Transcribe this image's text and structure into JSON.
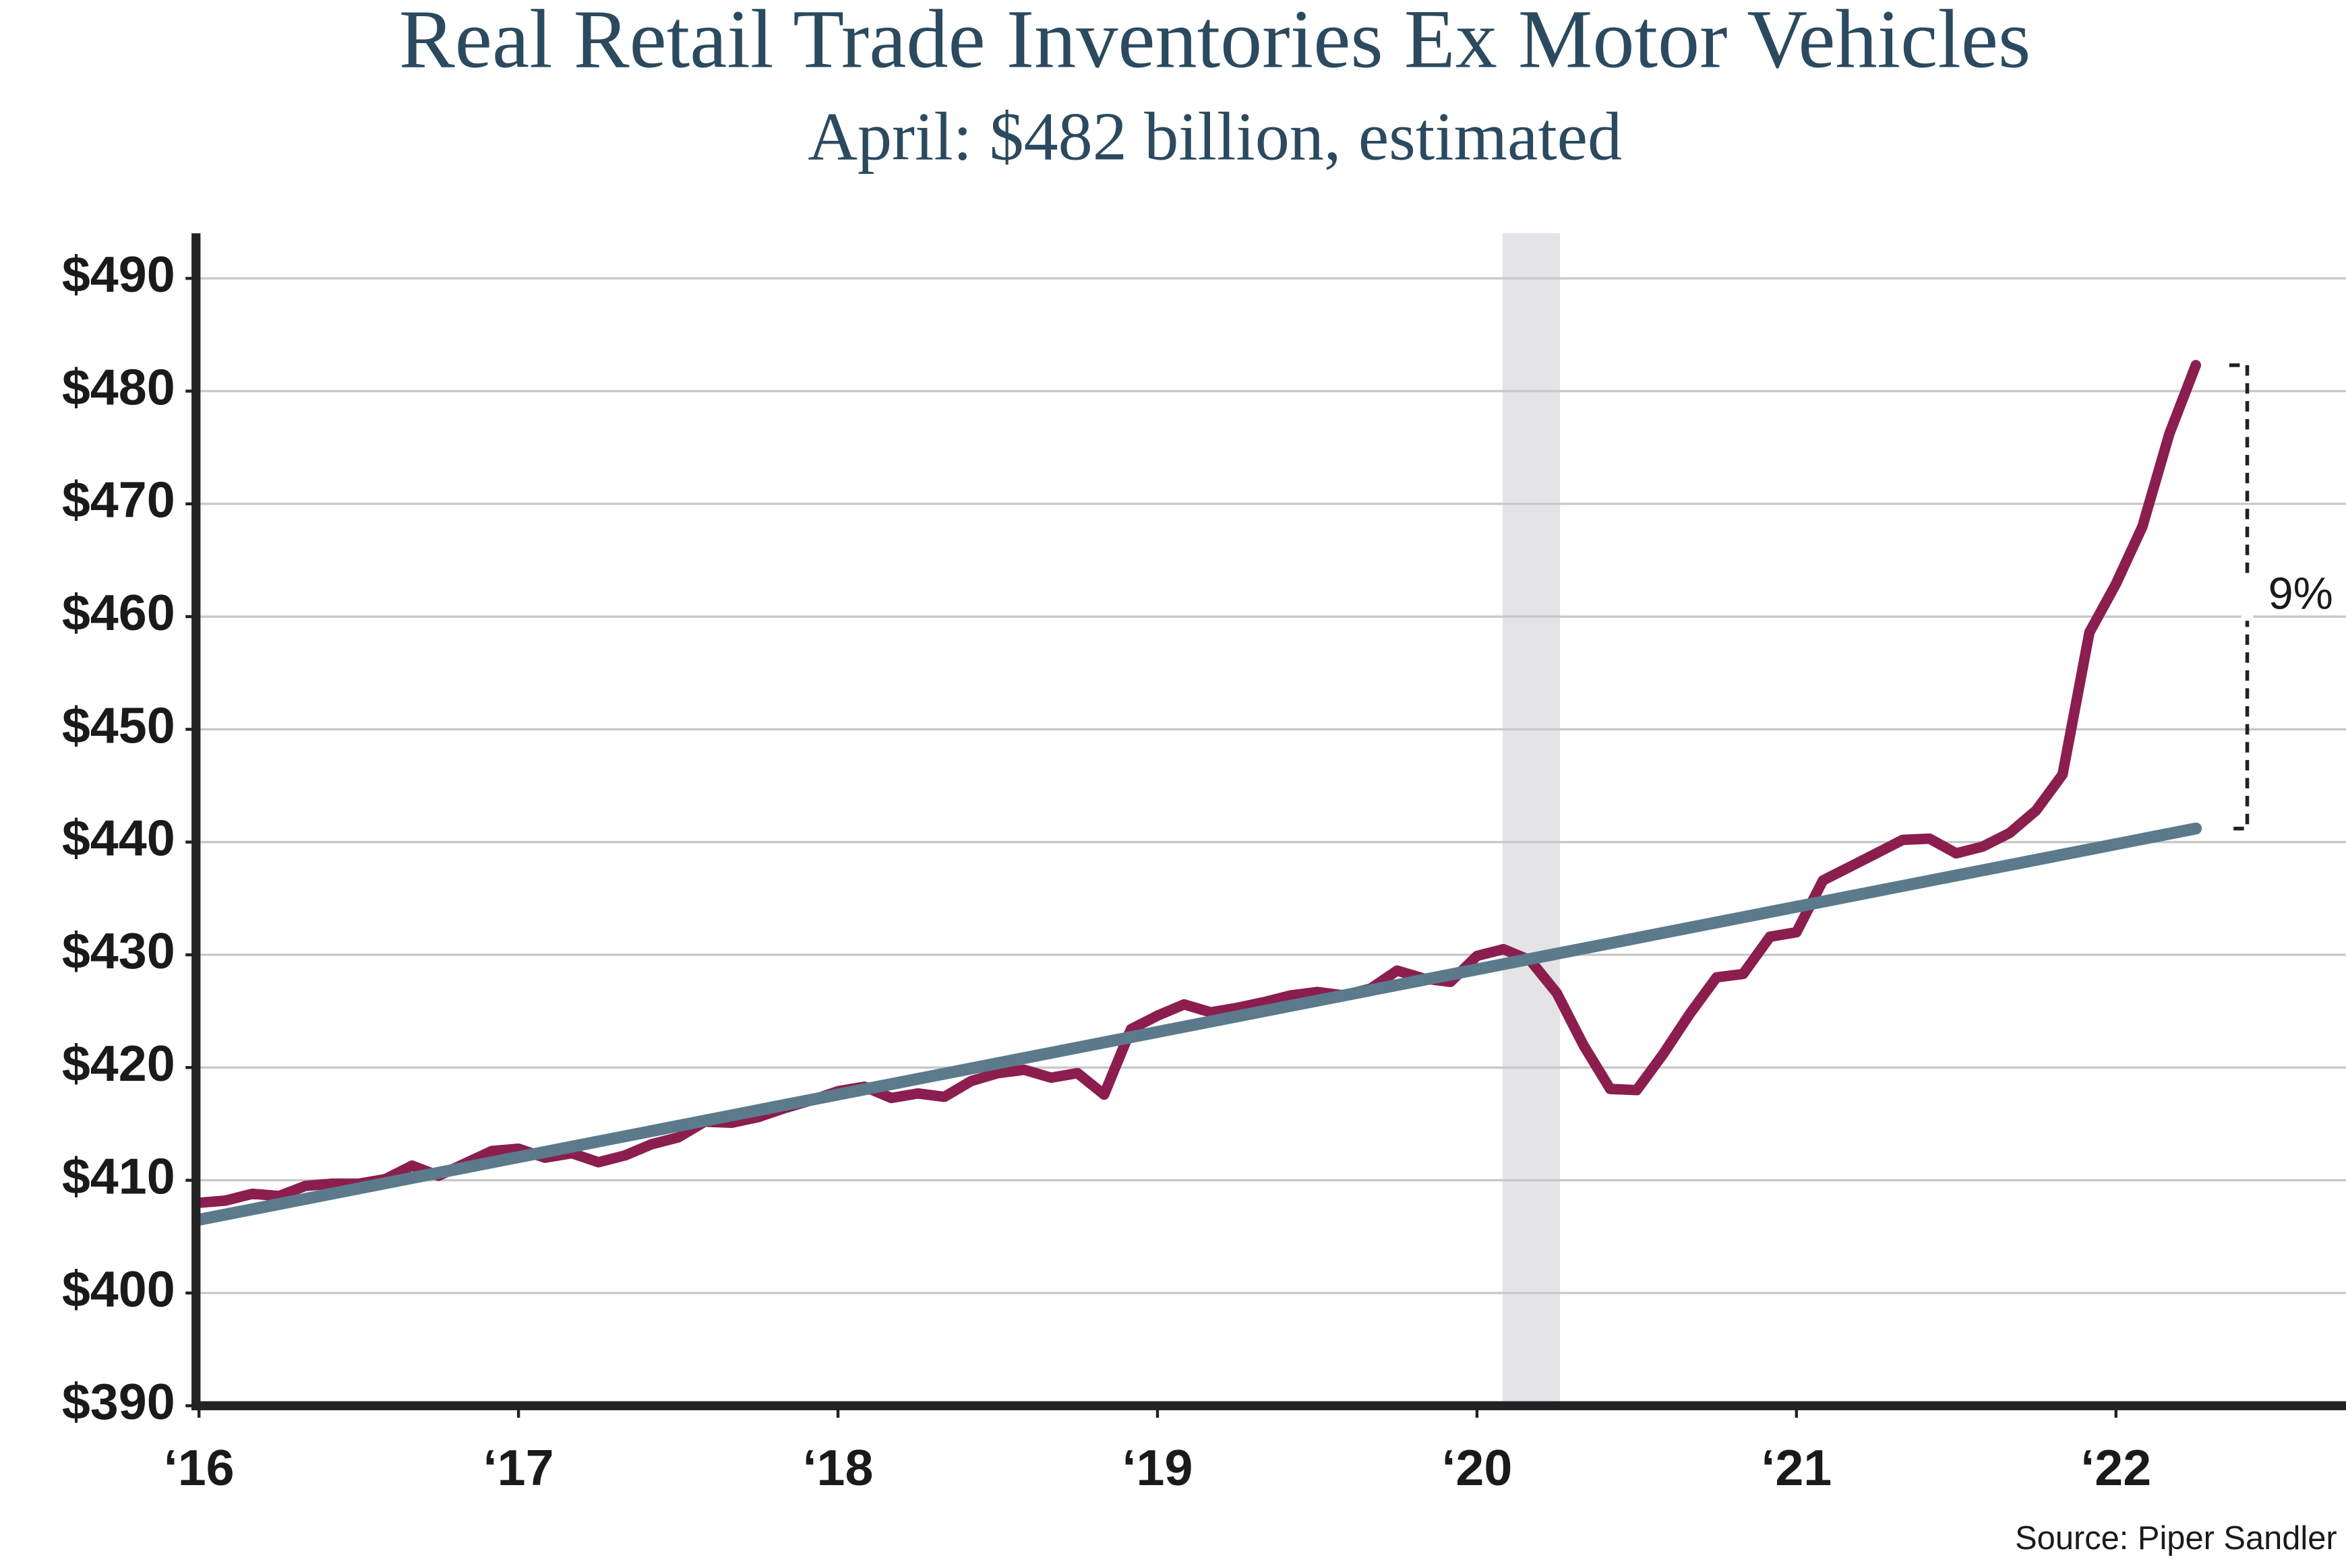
{
  "chart_data": {
    "type": "line",
    "title": "Real Retail Trade Inventories Ex Motor Vehicles",
    "subtitle": "April: $482 billion, estimated",
    "source": "Source: Piper Sandler",
    "x": [
      2016.0,
      2016.083,
      2016.167,
      2016.25,
      2016.333,
      2016.417,
      2016.5,
      2016.583,
      2016.667,
      2016.75,
      2016.833,
      2016.917,
      2017.0,
      2017.083,
      2017.167,
      2017.25,
      2017.333,
      2017.417,
      2017.5,
      2017.583,
      2017.667,
      2017.75,
      2017.833,
      2017.917,
      2018.0,
      2018.083,
      2018.167,
      2018.25,
      2018.333,
      2018.417,
      2018.5,
      2018.583,
      2018.667,
      2018.75,
      2018.833,
      2018.917,
      2019.0,
      2019.083,
      2019.167,
      2019.25,
      2019.333,
      2019.417,
      2019.5,
      2019.583,
      2019.667,
      2019.75,
      2019.833,
      2019.917,
      2020.0,
      2020.083,
      2020.167,
      2020.25,
      2020.333,
      2020.417,
      2020.5,
      2020.583,
      2020.667,
      2020.75,
      2020.833,
      2020.917,
      2021.0,
      2021.083,
      2021.167,
      2021.25,
      2021.333,
      2021.417,
      2021.5,
      2021.583,
      2021.667,
      2021.75,
      2021.833,
      2021.917,
      2022.0,
      2022.083,
      2022.167,
      2022.25
    ],
    "series": [
      {
        "color": "#8b1e4f",
        "values": [
          408.0,
          408.2,
          408.8,
          408.6,
          409.5,
          409.7,
          409.7,
          410.1,
          411.3,
          410.4,
          411.5,
          412.6,
          412.8,
          412.0,
          412.4,
          411.6,
          412.2,
          413.2,
          413.8,
          415.2,
          415.1,
          415.6,
          416.4,
          417.1,
          417.9,
          418.3,
          417.3,
          417.7,
          417.4,
          418.8,
          419.5,
          419.8,
          419.1,
          419.5,
          417.6,
          423.4,
          424.6,
          425.6,
          424.9,
          425.3,
          425.8,
          426.4,
          426.7,
          426.4,
          427.0,
          428.6,
          427.9,
          427.6,
          429.9,
          430.5,
          429.5,
          426.6,
          422.0,
          418.1,
          418.0,
          421.2,
          424.8,
          428.0,
          428.3,
          431.6,
          432.0,
          436.6,
          437.8,
          439.0,
          440.2,
          440.3,
          439.0,
          439.6,
          440.8,
          442.8,
          446.0,
          458.6,
          462.9,
          468.0,
          476.2,
          482.3
        ]
      },
      {
        "color": "#5b7a8c",
        "x": [
          2016.0,
          2022.25
        ],
        "values": [
          406.5,
          441.2
        ]
      }
    ],
    "recession": [
      2020.08,
      2020.26
    ],
    "annotation": "9%",
    "xlim": [
      2016,
      2022.72
    ],
    "ylim": [
      390,
      494
    ],
    "xticks": [
      {
        "value": 2016,
        "label": "‘16"
      },
      {
        "value": 2017,
        "label": "‘17"
      },
      {
        "value": 2018,
        "label": "‘18"
      },
      {
        "value": 2019,
        "label": "‘19"
      },
      {
        "value": 2020,
        "label": "‘20"
      },
      {
        "value": 2021,
        "label": "‘21"
      },
      {
        "value": 2022,
        "label": "‘22"
      }
    ],
    "yticks": [
      {
        "value": 390,
        "label": "$390"
      },
      {
        "value": 400,
        "label": "$400"
      },
      {
        "value": 410,
        "label": "$410"
      },
      {
        "value": 420,
        "label": "$420"
      },
      {
        "value": 430,
        "label": "$430"
      },
      {
        "value": 440,
        "label": "$440"
      },
      {
        "value": 450,
        "label": "$450"
      },
      {
        "value": 460,
        "label": "$460"
      },
      {
        "value": 470,
        "label": "$470"
      },
      {
        "value": 480,
        "label": "$480"
      },
      {
        "value": 490,
        "label": "$490"
      }
    ],
    "grid": true
  }
}
